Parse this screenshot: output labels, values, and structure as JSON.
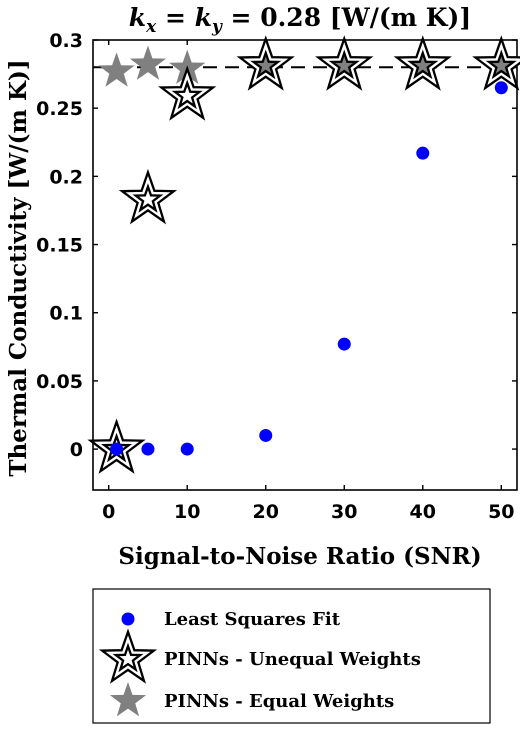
{
  "chart_data": {
    "type": "scatter",
    "title": {
      "lhs_base": "k",
      "lhs_sub": "x",
      "eq1": " = ",
      "rhs_base": "k",
      "rhs_sub": "y",
      "value": " = 0.28 [W/(m K)]"
    },
    "xlabel": "Signal-to-Noise Ratio (SNR)",
    "ylabel": "Thermal Conductivity [W/(m K)]",
    "xlim": [
      -2,
      52
    ],
    "ylim": [
      -0.03,
      0.3
    ],
    "xticks": [
      0,
      10,
      20,
      30,
      40,
      50
    ],
    "yticks": [
      0,
      0.05,
      0.1,
      0.15,
      0.2,
      0.25,
      0.3
    ],
    "xtick_labels": [
      "0",
      "10",
      "20",
      "30",
      "40",
      "50"
    ],
    "ytick_labels": [
      "0",
      "0.05",
      "0.1",
      "0.15",
      "0.2",
      "0.25",
      "0.3"
    ],
    "reference_line": {
      "y": 0.28,
      "style": "dashed",
      "color": "#000000"
    },
    "grid": false,
    "legend_position": "below",
    "series": [
      {
        "name": "PINNs - Equal Weights",
        "marker": "star",
        "color": "#808080",
        "points": [
          [
            1,
            0.277
          ],
          [
            5,
            0.282
          ],
          [
            10,
            0.279
          ],
          [
            20,
            0.281
          ],
          [
            30,
            0.281
          ],
          [
            40,
            0.281
          ],
          [
            50,
            0.281
          ]
        ]
      },
      {
        "name": "PINNs - Unequal Weights",
        "marker": "star-outline",
        "color": "#000000",
        "points": [
          [
            1,
            0.0
          ],
          [
            5,
            0.183
          ],
          [
            10,
            0.259
          ],
          [
            20,
            0.281
          ],
          [
            30,
            0.281
          ],
          [
            40,
            0.281
          ],
          [
            50,
            0.281
          ]
        ]
      },
      {
        "name": "Least Squares Fit",
        "marker": "circle",
        "color": "#0000ff",
        "points": [
          [
            1,
            0.0
          ],
          [
            5,
            0.0
          ],
          [
            10,
            0.0
          ],
          [
            20,
            0.01
          ],
          [
            30,
            0.077
          ],
          [
            40,
            0.217
          ],
          [
            50,
            0.265
          ]
        ]
      }
    ],
    "legend": [
      {
        "marker": "circle",
        "color": "#0000ff",
        "label": "Least Squares Fit"
      },
      {
        "marker": "star-outline",
        "color": "#000000",
        "label": "PINNs  - Unequal Weights"
      },
      {
        "marker": "star",
        "color": "#808080",
        "label": "PINNs  - Equal Weights"
      }
    ]
  }
}
